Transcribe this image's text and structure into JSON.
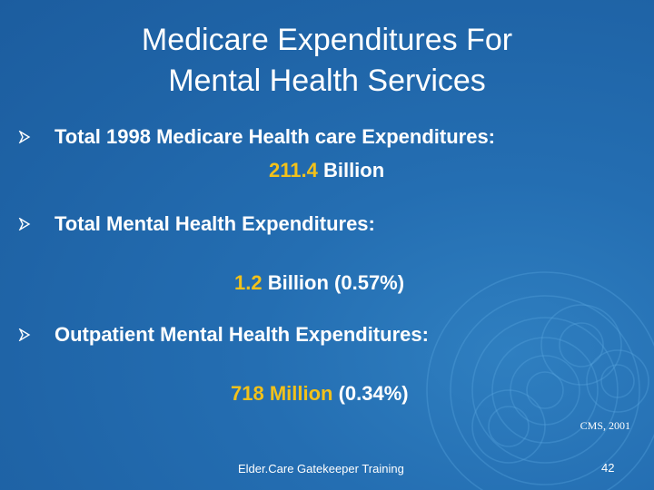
{
  "slide": {
    "title_line1": "Medicare Expenditures For",
    "title_line2": "Mental Health Services",
    "bullets": [
      {
        "label": "Total 1998 Medicare Health care Expenditures:",
        "value_amount": "211.4",
        "value_rest": " Billion"
      },
      {
        "label": "Total Mental Health Expenditures:",
        "value_amount": "1.2",
        "value_rest": " Billion (0.57%)"
      },
      {
        "label": "Outpatient Mental Health Expenditures:",
        "value_amount": "718 Million",
        "value_rest": " (0.34%)"
      }
    ],
    "source": "CMS, 2001",
    "footer": "Elder.Care Gatekeeper Training",
    "page_number": "42"
  },
  "colors": {
    "background": "#1f64a7",
    "highlight": "#f2c11a",
    "text": "#ffffff"
  },
  "icons": {
    "bullet": "arrowhead-bullet-icon"
  }
}
